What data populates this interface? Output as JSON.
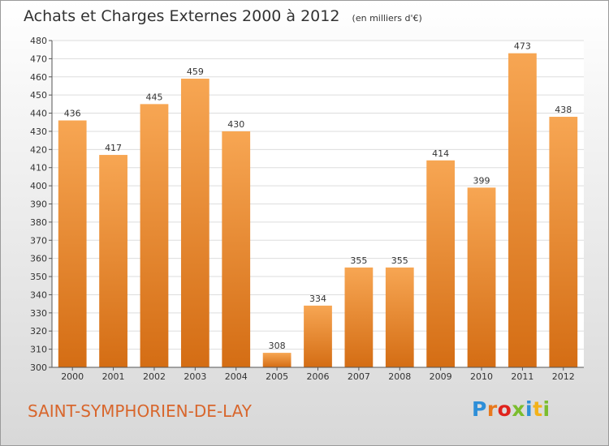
{
  "header": {
    "title": "Achats et Charges Externes 2000 à 2012",
    "unit": "(en milliers d'€)"
  },
  "footer": {
    "commune": "SAINT-SYMPHORIEN-DE-LAY",
    "brand": "Proxiti"
  },
  "colors": {
    "bar_top": "#f7a653",
    "bar_bottom": "#d46d14",
    "commune_text": "#d8662c",
    "brand_letters": [
      "#2e8fd8",
      "#e8791d",
      "#e0231d",
      "#7bbd2e",
      "#2e8fd8",
      "#f3b21a",
      "#7bbd2e"
    ]
  },
  "chart_data": {
    "type": "bar",
    "title": "Achats et Charges Externes 2000 à 2012",
    "subtitle": "(en milliers d'€)",
    "xlabel": "",
    "ylabel": "",
    "categories": [
      "2000",
      "2001",
      "2002",
      "2003",
      "2004",
      "2005",
      "2006",
      "2007",
      "2008",
      "2009",
      "2010",
      "2011",
      "2012"
    ],
    "values": [
      436,
      417,
      445,
      459,
      430,
      308,
      334,
      355,
      355,
      414,
      399,
      473,
      438
    ],
    "ylim": [
      300,
      480
    ],
    "yticks": [
      300,
      310,
      320,
      330,
      340,
      350,
      360,
      370,
      380,
      390,
      400,
      410,
      420,
      430,
      440,
      450,
      460,
      470,
      480
    ],
    "grid": true,
    "data_labels": true
  }
}
